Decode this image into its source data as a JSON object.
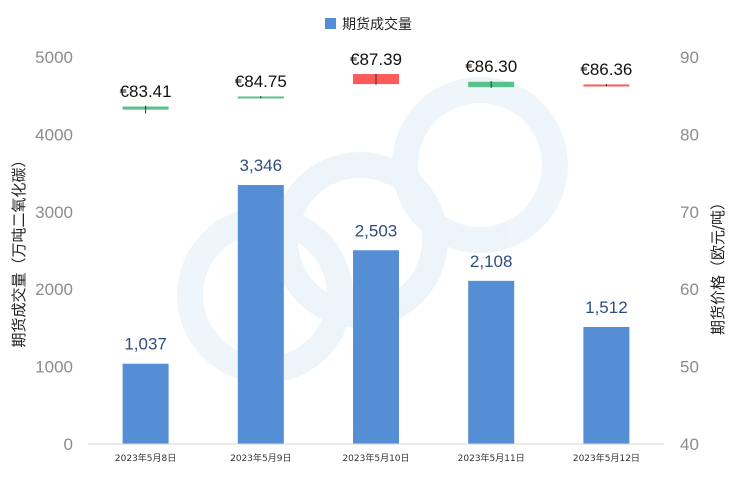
{
  "chart_data": {
    "type": "bar",
    "legend": {
      "label": "期货成交量",
      "position": "top",
      "color": "#558ed5"
    },
    "categories": [
      "2023年5月8日",
      "2023年5月9日",
      "2023年5月10日",
      "2023年5月11日",
      "2023年5月12日"
    ],
    "series": [
      {
        "name": "期货成交量",
        "axis": "left",
        "values": [
          1037,
          3346,
          2503,
          2108,
          1512
        ],
        "labels": [
          "1,037",
          "3,346",
          "2,503",
          "2,108",
          "1,512"
        ],
        "color": "#558ed5"
      }
    ],
    "price_candles": {
      "axis": "right",
      "items": [
        {
          "open": 83.2,
          "close": 83.6,
          "high": 83.7,
          "low": 82.7,
          "label": "€83.41",
          "direction": "up"
        },
        {
          "open": 84.7,
          "close": 84.9,
          "high": 84.95,
          "low": 84.7,
          "label": "€84.75",
          "direction": "up"
        },
        {
          "open": 87.8,
          "close": 86.5,
          "high": 87.8,
          "low": 86.4,
          "label": "€87.39",
          "direction": "down"
        },
        {
          "open": 86.1,
          "close": 86.8,
          "high": 86.9,
          "low": 86.0,
          "label": "€86.30",
          "direction": "up"
        },
        {
          "open": 86.45,
          "close": 86.3,
          "high": 86.5,
          "low": 86.2,
          "label": "€86.36",
          "direction": "down"
        }
      ],
      "up_color": "#58c08a",
      "down_color": "#ff5a5a"
    },
    "y_left": {
      "label": "期货成交量（万吨二氧化碳）",
      "min": 0,
      "max": 5000,
      "ticks": [
        0,
        1000,
        2000,
        3000,
        4000,
        5000
      ]
    },
    "y_right": {
      "label": "期货价格（欧元/吨）",
      "min": 40,
      "max": 90,
      "ticks": [
        40,
        50,
        60,
        70,
        80,
        90
      ]
    },
    "grid": false
  }
}
